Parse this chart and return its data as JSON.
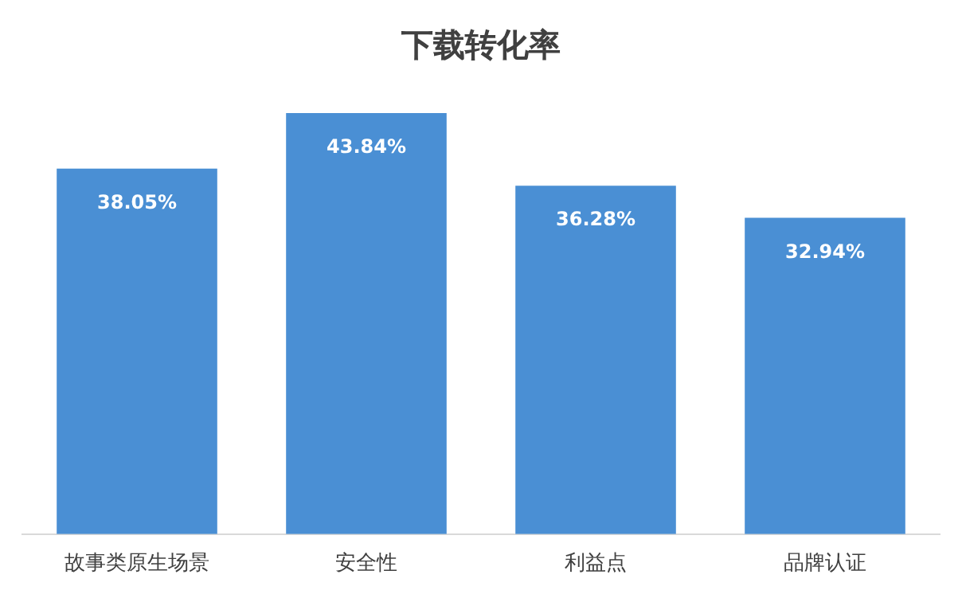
{
  "chart_data": {
    "type": "bar",
    "title": "下载转化率",
    "categories": [
      "故事类原生场景",
      "安全性",
      "利益点",
      "品牌认证"
    ],
    "values": [
      38.05,
      43.84,
      36.28,
      32.94
    ],
    "value_labels": [
      "38.05%",
      "43.84%",
      "36.28%",
      "32.94%"
    ],
    "color": "#4a8fd4"
  }
}
